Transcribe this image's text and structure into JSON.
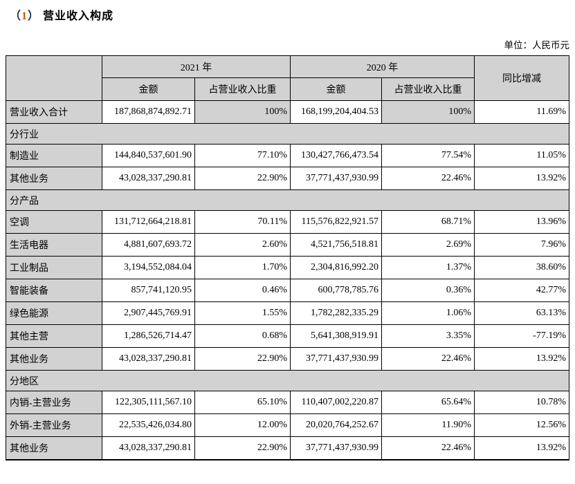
{
  "title": {
    "open": "（",
    "num": "1",
    "close": "）",
    "text": "营业收入构成"
  },
  "unit_label": "单位：人民币元",
  "colors": {
    "header_bg": "#d2d2d2",
    "border": "#000000",
    "title_number": "#c55a11"
  },
  "table": {
    "header": {
      "year_2021": "2021 年",
      "year_2020": "2020 年",
      "amount_2021": "金额",
      "share_2021": "占营业收入比重",
      "amount_2020": "金额",
      "share_2020": "占营业收入比重",
      "yoy": "同比增减"
    },
    "rows": [
      {
        "type": "data",
        "shaded": true,
        "label": "营业收入合计",
        "a2021": "187,868,874,892.71",
        "p2021": "100%",
        "a2020": "168,199,204,404.53",
        "p2020": "100%",
        "yoy": "11.69%"
      },
      {
        "type": "section",
        "label": "分行业"
      },
      {
        "type": "data",
        "shaded": false,
        "label": "制造业",
        "a2021": "144,840,537,601.90",
        "p2021": "77.10%",
        "a2020": "130,427,766,473.54",
        "p2020": "77.54%",
        "yoy": "11.05%"
      },
      {
        "type": "data",
        "shaded": false,
        "label": "其他业务",
        "a2021": "43,028,337,290.81",
        "p2021": "22.90%",
        "a2020": "37,771,437,930.99",
        "p2020": "22.46%",
        "yoy": "13.92%"
      },
      {
        "type": "section",
        "label": "分产品"
      },
      {
        "type": "data",
        "shaded": false,
        "label": "空调",
        "a2021": "131,712,664,218.81",
        "p2021": "70.11%",
        "a2020": "115,576,822,921.57",
        "p2020": "68.71%",
        "yoy": "13.96%"
      },
      {
        "type": "data",
        "shaded": false,
        "label": "生活电器",
        "a2021": "4,881,607,693.72",
        "p2021": "2.60%",
        "a2020": "4,521,756,518.81",
        "p2020": "2.69%",
        "yoy": "7.96%"
      },
      {
        "type": "data",
        "shaded": false,
        "label": "工业制品",
        "a2021": "3,194,552,084.04",
        "p2021": "1.70%",
        "a2020": "2,304,816,992.20",
        "p2020": "1.37%",
        "yoy": "38.60%"
      },
      {
        "type": "data",
        "shaded": false,
        "label": "智能装备",
        "a2021": "857,741,120.95",
        "p2021": "0.46%",
        "a2020": "600,778,785.76",
        "p2020": "0.36%",
        "yoy": "42.77%"
      },
      {
        "type": "data",
        "shaded": false,
        "label": "绿色能源",
        "a2021": "2,907,445,769.91",
        "p2021": "1.55%",
        "a2020": "1,782,282,335.29",
        "p2020": "1.06%",
        "yoy": "63.13%"
      },
      {
        "type": "data",
        "shaded": false,
        "label": "其他主营",
        "a2021": "1,286,526,714.47",
        "p2021": "0.68%",
        "a2020": "5,641,308,919.91",
        "p2020": "3.35%",
        "yoy": "-77.19%"
      },
      {
        "type": "data",
        "shaded": false,
        "label": "其他业务",
        "a2021": "43,028,337,290.81",
        "p2021": "22.90%",
        "a2020": "37,771,437,930.99",
        "p2020": "22.46%",
        "yoy": "13.92%"
      },
      {
        "type": "section",
        "label": "分地区"
      },
      {
        "type": "data",
        "shaded": false,
        "label": "内销-主营业务",
        "a2021": "122,305,111,567.10",
        "p2021": "65.10%",
        "a2020": "110,407,002,220.87",
        "p2020": "65.64%",
        "yoy": "10.78%"
      },
      {
        "type": "data",
        "shaded": false,
        "label": "外销-主营业务",
        "a2021": "22,535,426,034.80",
        "p2021": "12.00%",
        "a2020": "20,020,764,252.67",
        "p2020": "11.90%",
        "yoy": "12.56%"
      },
      {
        "type": "data",
        "shaded": false,
        "label": "其他业务",
        "a2021": "43,028,337,290.81",
        "p2021": "22.90%",
        "a2020": "37,771,437,930.99",
        "p2020": "22.46%",
        "yoy": "13.92%"
      }
    ]
  }
}
